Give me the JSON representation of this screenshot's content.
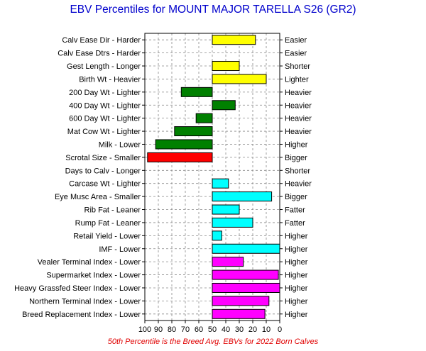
{
  "title": "EBV Percentiles for MOUNT MAJOR TARELLA S26 (GR2)",
  "footer": "50th Percentile is the Breed Avg. EBVs for 2022 Born Calves",
  "colors": {
    "yellow": "#ffff00",
    "green": "#008000",
    "red": "#ff0000",
    "cyan": "#00ffff",
    "magenta": "#ff00ff",
    "title": "#0000cc",
    "footer": "#e00000"
  },
  "chart_data": {
    "type": "bar",
    "orientation": "horizontal",
    "baseline": 50,
    "xlim": [
      100,
      0
    ],
    "x_reversed": true,
    "x_ticks": [
      100,
      90,
      80,
      70,
      60,
      50,
      40,
      30,
      20,
      10,
      0
    ],
    "grid": true,
    "rows": [
      {
        "left_label": "Calv Ease Dir - Harder",
        "right_label": "Easier",
        "value": 18,
        "color": "yellow"
      },
      {
        "left_label": "Calv Ease Dtrs - Harder",
        "right_label": "Easier",
        "value": null,
        "color": null
      },
      {
        "left_label": "Gest Length - Longer",
        "right_label": "Shorter",
        "value": 30,
        "color": "yellow"
      },
      {
        "left_label": "Birth Wt - Heavier",
        "right_label": "Lighter",
        "value": 10,
        "color": "yellow"
      },
      {
        "left_label": "200 Day Wt - Lighter",
        "right_label": "Heavier",
        "value": 73,
        "color": "green"
      },
      {
        "left_label": "400 Day Wt - Lighter",
        "right_label": "Heavier",
        "value": 33,
        "color": "green"
      },
      {
        "left_label": "600 Day Wt - Lighter",
        "right_label": "Heavier",
        "value": 62,
        "color": "green"
      },
      {
        "left_label": "Mat Cow Wt - Lighter",
        "right_label": "Heavier",
        "value": 78,
        "color": "green"
      },
      {
        "left_label": "Milk - Lower",
        "right_label": "Higher",
        "value": 92,
        "color": "green"
      },
      {
        "left_label": "Scrotal Size - Smaller",
        "right_label": "Bigger",
        "value": 98,
        "color": "red"
      },
      {
        "left_label": "Days to Calv - Longer",
        "right_label": "Shorter",
        "value": null,
        "color": null
      },
      {
        "left_label": "Carcase Wt - Lighter",
        "right_label": "Heavier",
        "value": 38,
        "color": "cyan"
      },
      {
        "left_label": "Eye Musc Area - Smaller",
        "right_label": "Bigger",
        "value": 6,
        "color": "cyan"
      },
      {
        "left_label": "Rib Fat - Leaner",
        "right_label": "Fatter",
        "value": 30,
        "color": "cyan"
      },
      {
        "left_label": "Rump Fat - Leaner",
        "right_label": "Fatter",
        "value": 20,
        "color": "cyan"
      },
      {
        "left_label": "Retail Yield - Lower",
        "right_label": "Higher",
        "value": 43,
        "color": "cyan"
      },
      {
        "left_label": "IMF - Lower",
        "right_label": "Higher",
        "value": 0,
        "color": "cyan"
      },
      {
        "left_label": "Vealer Terminal Index - Lower",
        "right_label": "Higher",
        "value": 27,
        "color": "magenta"
      },
      {
        "left_label": "Supermarket Index - Lower",
        "right_label": "Higher",
        "value": 1,
        "color": "magenta"
      },
      {
        "left_label": "Heavy Grassfed Steer Index - Lower",
        "right_label": "Higher",
        "value": 0,
        "color": "magenta"
      },
      {
        "left_label": "Northern Terminal Index - Lower",
        "right_label": "Higher",
        "value": 8,
        "color": "magenta"
      },
      {
        "left_label": "Breed Replacement Index - Lower",
        "right_label": "Higher",
        "value": 11,
        "color": "magenta"
      }
    ]
  }
}
